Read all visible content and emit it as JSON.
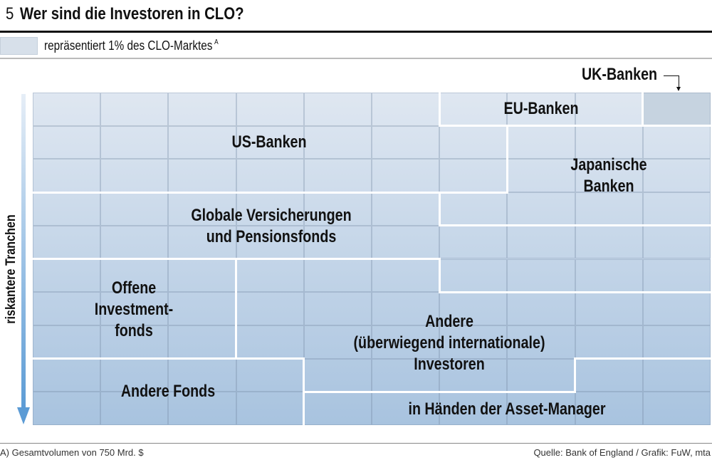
{
  "header": {
    "number": "5",
    "title": "Wer sind die Investoren in CLO?"
  },
  "legend": {
    "text": "repräsentiert 1% des CLO-Marktes",
    "footnote_mark": "A"
  },
  "axis": {
    "label": "riskantere Tranchen"
  },
  "chart_data": {
    "type": "waffle",
    "title": "Wer sind die Investoren in CLO?",
    "unit": "1 cell = 1% of CLO market",
    "groups": [
      {
        "key": "uk",
        "label": "UK-Banken",
        "value": 1
      },
      {
        "key": "eu",
        "label": "EU-Banken",
        "value": 3
      },
      {
        "key": "us",
        "label": "US-Banken",
        "value": 20
      },
      {
        "key": "jp",
        "label": "Japanische Banken",
        "value": 10
      },
      {
        "key": "gl",
        "label": "Globale Versicherungen und Pensionsfonds",
        "value": 20
      },
      {
        "key": "of",
        "label": "Offene Investmentfonds",
        "value": 9
      },
      {
        "key": "an",
        "label": "Andere (überwiegend internationale) Investoren",
        "value": 21
      },
      {
        "key": "af",
        "label": "Andere Fonds",
        "value": 8
      },
      {
        "key": "am",
        "label": "in Händen der Asset-Manager",
        "value": 8
      }
    ],
    "grid": [
      [
        "us",
        "us",
        "us",
        "us",
        "us",
        "us",
        "eu",
        "eu",
        "eu",
        "uk"
      ],
      [
        "us",
        "us",
        "us",
        "us",
        "us",
        "us",
        "us",
        "jp",
        "jp",
        "jp"
      ],
      [
        "us",
        "us",
        "us",
        "us",
        "us",
        "us",
        "us",
        "jp",
        "jp",
        "jp"
      ],
      [
        "gl",
        "gl",
        "gl",
        "gl",
        "gl",
        "gl",
        "jp",
        "jp",
        "jp",
        "jp"
      ],
      [
        "gl",
        "gl",
        "gl",
        "gl",
        "gl",
        "gl",
        "gl",
        "gl",
        "gl",
        "gl"
      ],
      [
        "of",
        "of",
        "of",
        "an",
        "an",
        "an",
        "gl",
        "gl",
        "gl",
        "gl"
      ],
      [
        "of",
        "of",
        "of",
        "an",
        "an",
        "an",
        "an",
        "an",
        "an",
        "an"
      ],
      [
        "of",
        "of",
        "of",
        "an",
        "an",
        "an",
        "an",
        "an",
        "an",
        "an"
      ],
      [
        "af",
        "af",
        "af",
        "af",
        "an",
        "an",
        "an",
        "an",
        "am",
        "am"
      ],
      [
        "af",
        "af",
        "af",
        "af",
        "am",
        "am",
        "am",
        "am",
        "am",
        "am"
      ]
    ]
  },
  "labels": {
    "uk": "UK-Banken",
    "eu": "EU-Banken",
    "us": "US-Banken",
    "jp1": "Japanische",
    "jp2": "Banken",
    "gl1": "Globale Versicherungen",
    "gl2": "und Pensionsfonds",
    "of1": "Offene",
    "of2": "Investment-",
    "of3": "fonds",
    "an1": "Andere",
    "an2": "(überwiegend internationale)",
    "an3": "Investoren",
    "af": "Andere Fonds",
    "am": "in Händen der Asset-Manager"
  },
  "footer": {
    "note": "A) Gesamtvolumen von 750 Mrd. $",
    "source": "Quelle: Bank of England / Grafik: FuW, mta"
  }
}
